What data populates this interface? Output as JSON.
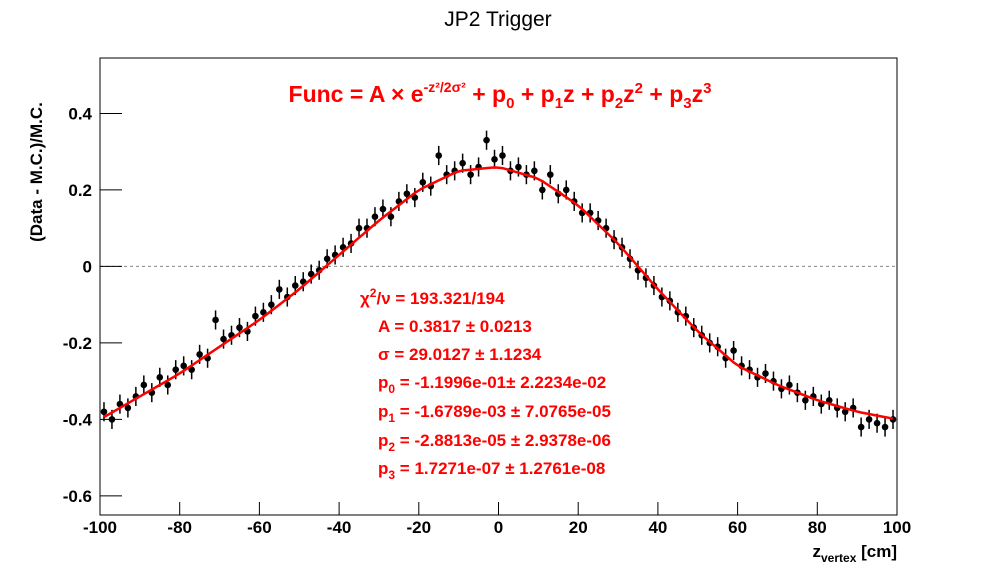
{
  "chart_data": {
    "type": "scatter",
    "title": "JP2 Trigger",
    "y_label": "(Data - M.C.)/M.C.",
    "x_label": [
      "z",
      "vertex",
      " [cm]"
    ],
    "formula": [
      "Func = A × e",
      "-z²/2σ²",
      " + p",
      "0",
      " + p",
      "1",
      "z + p",
      "2",
      "z",
      "2",
      " + p",
      "3",
      "z",
      "3"
    ],
    "stats": {
      "chi2": [
        "χ",
        "2",
        "/ν = 193.321/194"
      ],
      "A": "A = 0.3817 ± 0.0213",
      "sigma": "σ = 29.0127 ± 1.1234",
      "p0": [
        "p",
        "0",
        " = -1.1996e-01± 2.2234e-02"
      ],
      "p1": [
        "p",
        "1",
        " = -1.6789e-03 ± 7.0765e-05"
      ],
      "p2": [
        "p",
        "2",
        " = -2.8813e-05 ± 2.9378e-06"
      ],
      "p3": [
        "p",
        "3",
        " = 1.7271e-07 ± 1.2761e-08"
      ]
    },
    "color": "#000000",
    "x": [
      -99,
      -97,
      -95,
      -93,
      -91,
      -89,
      -87,
      -85,
      -83,
      -81,
      -79,
      -77,
      -75,
      -73,
      -71,
      -69,
      -67,
      -65,
      -63,
      -61,
      -59,
      -57,
      -55,
      -53,
      -51,
      -49,
      -47,
      -45,
      -43,
      -41,
      -39,
      -37,
      -35,
      -33,
      -31,
      -29,
      -27,
      -25,
      -23,
      -21,
      -19,
      -17,
      -15,
      -13,
      -11,
      -9,
      -7,
      -5,
      -3,
      -1,
      1,
      3,
      5,
      7,
      9,
      11,
      13,
      15,
      17,
      19,
      21,
      23,
      25,
      27,
      29,
      31,
      33,
      35,
      37,
      39,
      41,
      43,
      45,
      47,
      49,
      51,
      53,
      55,
      57,
      59,
      61,
      63,
      65,
      67,
      69,
      71,
      73,
      75,
      77,
      79,
      81,
      83,
      85,
      87,
      89,
      91,
      93,
      95,
      97,
      99
    ],
    "values": [
      -0.38,
      -0.4,
      -0.36,
      -0.37,
      -0.34,
      -0.31,
      -0.33,
      -0.29,
      -0.31,
      -0.27,
      -0.26,
      -0.27,
      -0.23,
      -0.24,
      -0.14,
      -0.19,
      -0.18,
      -0.16,
      -0.17,
      -0.13,
      -0.12,
      -0.1,
      -0.06,
      -0.08,
      -0.05,
      -0.04,
      -0.02,
      -0.01,
      0.02,
      0.03,
      0.05,
      0.06,
      0.1,
      0.1,
      0.13,
      0.15,
      0.13,
      0.17,
      0.19,
      0.18,
      0.22,
      0.21,
      0.29,
      0.24,
      0.25,
      0.27,
      0.24,
      0.26,
      0.33,
      0.28,
      0.29,
      0.25,
      0.26,
      0.24,
      0.25,
      0.2,
      0.24,
      0.19,
      0.2,
      0.17,
      0.14,
      0.14,
      0.12,
      0.1,
      0.07,
      0.05,
      0.02,
      -0.01,
      -0.03,
      -0.05,
      -0.08,
      -0.09,
      -0.12,
      -0.13,
      -0.16,
      -0.18,
      -0.2,
      -0.21,
      -0.24,
      -0.22,
      -0.26,
      -0.27,
      -0.29,
      -0.28,
      -0.3,
      -0.32,
      -0.31,
      -0.33,
      -0.35,
      -0.34,
      -0.36,
      -0.35,
      -0.37,
      -0.38,
      -0.37,
      -0.42,
      -0.4,
      -0.41,
      -0.42,
      -0.4
    ],
    "errors": [
      0.025,
      0.025,
      0.025,
      0.025,
      0.025,
      0.025,
      0.025,
      0.025,
      0.025,
      0.025,
      0.025,
      0.025,
      0.025,
      0.025,
      0.025,
      0.025,
      0.025,
      0.025,
      0.025,
      0.025,
      0.025,
      0.025,
      0.025,
      0.025,
      0.025,
      0.025,
      0.025,
      0.025,
      0.025,
      0.025,
      0.025,
      0.025,
      0.025,
      0.025,
      0.025,
      0.025,
      0.025,
      0.025,
      0.025,
      0.025,
      0.025,
      0.025,
      0.025,
      0.025,
      0.025,
      0.025,
      0.025,
      0.025,
      0.025,
      0.025,
      0.025,
      0.025,
      0.025,
      0.025,
      0.025,
      0.025,
      0.025,
      0.025,
      0.025,
      0.025,
      0.025,
      0.025,
      0.025,
      0.025,
      0.025,
      0.025,
      0.025,
      0.025,
      0.025,
      0.025,
      0.025,
      0.025,
      0.025,
      0.025,
      0.025,
      0.025,
      0.025,
      0.025,
      0.025,
      0.025,
      0.025,
      0.025,
      0.025,
      0.025,
      0.025,
      0.025,
      0.025,
      0.025,
      0.025,
      0.025,
      0.025,
      0.025,
      0.025,
      0.025,
      0.025,
      0.025,
      0.025,
      0.025,
      0.025,
      0.025
    ],
    "fit": {
      "color": "#ff0000",
      "values": [
        -0.394,
        -0.382,
        -0.37,
        -0.358,
        -0.346,
        -0.334,
        -0.322,
        -0.31,
        -0.298,
        -0.286,
        -0.273,
        -0.259,
        -0.245,
        -0.231,
        -0.217,
        -0.203,
        -0.189,
        -0.175,
        -0.161,
        -0.147,
        -0.132,
        -0.116,
        -0.1,
        -0.084,
        -0.068,
        -0.051,
        -0.033,
        -0.015,
        0.003,
        0.021,
        0.039,
        0.057,
        0.075,
        0.093,
        0.111,
        0.128,
        0.144,
        0.16,
        0.176,
        0.192,
        0.205,
        0.215,
        0.225,
        0.235,
        0.245,
        0.251,
        0.253,
        0.255,
        0.257,
        0.259,
        0.257,
        0.251,
        0.245,
        0.239,
        0.233,
        0.223,
        0.209,
        0.195,
        0.181,
        0.167,
        0.15,
        0.13,
        0.11,
        0.09,
        0.07,
        0.048,
        0.024,
        0.0,
        -0.024,
        -0.048,
        -0.071,
        -0.093,
        -0.115,
        -0.137,
        -0.159,
        -0.179,
        -0.197,
        -0.215,
        -0.233,
        -0.251,
        -0.265,
        -0.275,
        -0.285,
        -0.295,
        -0.305,
        -0.314,
        -0.322,
        -0.33,
        -0.338,
        -0.346,
        -0.353,
        -0.359,
        -0.365,
        -0.371,
        -0.377,
        -0.382,
        -0.386,
        -0.39,
        -0.394,
        -0.398
      ]
    },
    "xlim": [
      -100,
      100
    ],
    "xticks": [
      -100,
      -80,
      -60,
      -40,
      -20,
      0,
      20,
      40,
      60,
      80,
      100
    ],
    "ylim": [
      -0.65,
      0.545
    ],
    "yticks": [
      -0.6,
      -0.4,
      -0.2,
      0,
      0.2,
      0.4
    ]
  }
}
